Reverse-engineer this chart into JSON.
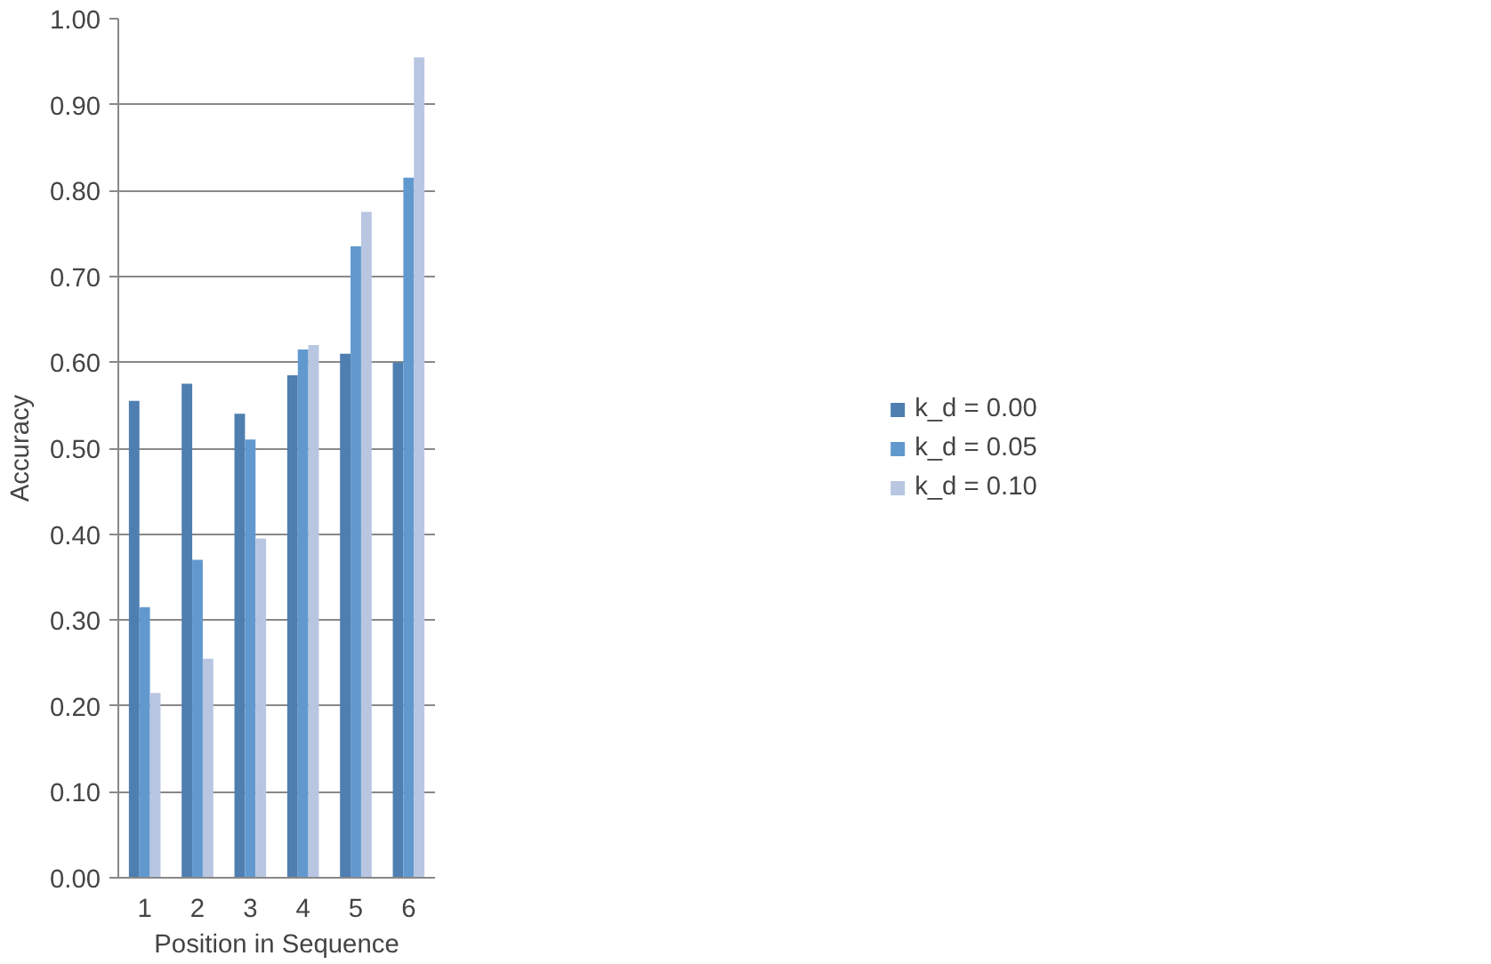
{
  "chart_data": {
    "type": "bar",
    "xlabel": "Position in Sequence",
    "ylabel": "Accuracy",
    "categories": [
      "1",
      "2",
      "3",
      "4",
      "5",
      "6"
    ],
    "series": [
      {
        "name": "k_d = 0.00",
        "color": "#4f7eb0",
        "values": [
          0.555,
          0.575,
          0.54,
          0.585,
          0.61,
          0.6
        ]
      },
      {
        "name": "k_d = 0.05",
        "color": "#6199cf",
        "values": [
          0.315,
          0.37,
          0.51,
          0.615,
          0.735,
          0.815
        ]
      },
      {
        "name": "k_d = 0.10",
        "color": "#b8c6e2",
        "values": [
          0.215,
          0.255,
          0.395,
          0.62,
          0.775,
          0.955
        ]
      }
    ],
    "ylim": [
      0,
      1
    ],
    "yticks": [
      {
        "value": 0,
        "label": "0.00"
      },
      {
        "value": 0.1,
        "label": "0.10"
      },
      {
        "value": 0.2,
        "label": "0.20"
      },
      {
        "value": 0.3,
        "label": "0.30"
      },
      {
        "value": 0.4,
        "label": "0.40"
      },
      {
        "value": 0.5,
        "label": "0.50"
      },
      {
        "value": 0.6,
        "label": "0.60"
      },
      {
        "value": 0.7,
        "label": "0.70"
      },
      {
        "value": 0.8,
        "label": "0.80"
      },
      {
        "value": 0.9,
        "label": "0.90"
      },
      {
        "value": 1,
        "label": "1.00"
      }
    ],
    "grid": "y",
    "legend": "right"
  }
}
